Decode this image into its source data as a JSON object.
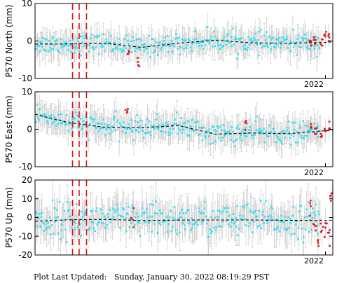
{
  "footer": {
    "label": "Plot Last Updated:",
    "timestamp": "Sunday, January 30, 2022 08:19:29 PST"
  },
  "colors": {
    "points_main": "#33e0f0",
    "points_recent": "#e0141e",
    "error_bars": "#c8c8c8",
    "trend": "#000000",
    "event_lines": "#dd1111",
    "frame": "#000000"
  },
  "chart_data": [
    {
      "type": "scatter",
      "ylabel": "P570 North (mm)",
      "ylim": [
        -10,
        10
      ],
      "yticks": [
        -10,
        0,
        10
      ],
      "x_tick_label": "2022",
      "x_range": [
        2014.1,
        2022.2
      ],
      "event_lines_x": [
        2015.12,
        2015.3,
        2015.5
      ],
      "trend": [
        {
          "x": 2014.1,
          "y": -0.8
        },
        {
          "x": 2015.0,
          "y": -0.8
        },
        {
          "x": 2016.0,
          "y": -0.6
        },
        {
          "x": 2017.0,
          "y": -1.7
        },
        {
          "x": 2018.0,
          "y": -0.6
        },
        {
          "x": 2019.0,
          "y": 0.2
        },
        {
          "x": 2020.0,
          "y": -0.5
        },
        {
          "x": 2021.0,
          "y": -0.6
        },
        {
          "x": 2022.0,
          "y": -0.4
        },
        {
          "x": 2022.2,
          "y": -0.2
        }
      ],
      "typical_error": 3.0,
      "point_spread": 1.3,
      "highlight_points": [
        {
          "x": 2016.65,
          "y": -2.6
        },
        {
          "x": 2016.9,
          "y": -5.6
        },
        {
          "x": 2021.6,
          "y": -1.2
        },
        {
          "x": 2021.72,
          "y": -0.8
        },
        {
          "x": 2021.9,
          "y": 0.4
        },
        {
          "x": 2022.0,
          "y": 1.2
        },
        {
          "x": 2022.08,
          "y": 1.4
        }
      ]
    },
    {
      "type": "scatter",
      "ylabel": "P570 East (mm)",
      "ylim": [
        -10,
        10
      ],
      "yticks": [
        -10,
        0,
        10
      ],
      "x_tick_label": "2022",
      "x_range": [
        2014.1,
        2022.2
      ],
      "event_lines_x": [
        2015.12,
        2015.3,
        2015.5
      ],
      "trend": [
        {
          "x": 2014.1,
          "y": 4.0
        },
        {
          "x": 2015.0,
          "y": 1.8
        },
        {
          "x": 2016.0,
          "y": 0.5
        },
        {
          "x": 2017.0,
          "y": 0.4
        },
        {
          "x": 2018.0,
          "y": 1.0
        },
        {
          "x": 2019.0,
          "y": -1.3
        },
        {
          "x": 2020.0,
          "y": -1.0
        },
        {
          "x": 2021.0,
          "y": -1.2
        },
        {
          "x": 2022.0,
          "y": -0.4
        },
        {
          "x": 2022.2,
          "y": -0.2
        }
      ],
      "typical_error": 3.2,
      "point_spread": 1.4,
      "highlight_points": [
        {
          "x": 2016.6,
          "y": 4.4
        },
        {
          "x": 2019.85,
          "y": 1.6
        },
        {
          "x": 2021.6,
          "y": 0.4
        },
        {
          "x": 2021.75,
          "y": -1.2
        },
        {
          "x": 2021.9,
          "y": -2.0
        },
        {
          "x": 2022.0,
          "y": -0.5
        },
        {
          "x": 2022.1,
          "y": 0.2
        }
      ]
    },
    {
      "type": "scatter",
      "ylabel": "P570 Up (mm)",
      "ylim": [
        -20,
        20
      ],
      "yticks": [
        -20,
        -10,
        0,
        10,
        20
      ],
      "x_tick_label": "2022",
      "x_range": [
        2014.1,
        2022.2
      ],
      "event_lines_x": [
        2015.12,
        2015.3,
        2015.5
      ],
      "trend": [
        {
          "x": 2014.1,
          "y": -2.0
        },
        {
          "x": 2015.0,
          "y": -1.2
        },
        {
          "x": 2016.0,
          "y": -1.0
        },
        {
          "x": 2017.0,
          "y": -1.6
        },
        {
          "x": 2018.0,
          "y": -1.4
        },
        {
          "x": 2019.0,
          "y": -1.3
        },
        {
          "x": 2020.0,
          "y": -1.3
        },
        {
          "x": 2021.0,
          "y": -1.5
        },
        {
          "x": 2022.0,
          "y": -1.6
        },
        {
          "x": 2022.2,
          "y": -1.4
        }
      ],
      "typical_error": 8.0,
      "point_spread": 4.5,
      "highlight_points": [
        {
          "x": 2016.75,
          "y": -1.0
        },
        {
          "x": 2021.6,
          "y": 6.0
        },
        {
          "x": 2021.7,
          "y": -4.0
        },
        {
          "x": 2021.8,
          "y": -12.0
        },
        {
          "x": 2021.9,
          "y": -7.0
        },
        {
          "x": 2022.0,
          "y": -3.0
        },
        {
          "x": 2022.1,
          "y": -8.0
        },
        {
          "x": 2022.15,
          "y": 9.0
        }
      ]
    }
  ]
}
